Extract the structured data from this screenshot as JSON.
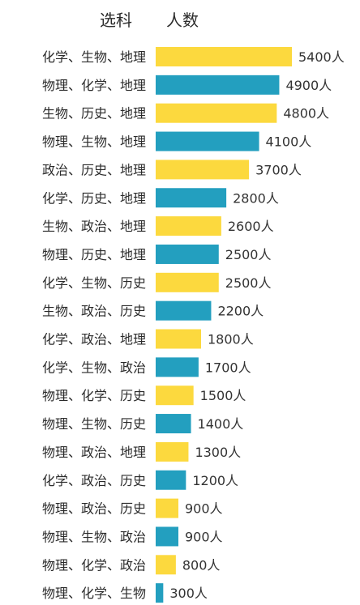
{
  "chart_data": {
    "type": "bar",
    "orientation": "horizontal",
    "header": {
      "category": "选科",
      "value": "人数"
    },
    "unit_suffix": "人",
    "categories": [
      "化学、生物、地理",
      "物理、化学、地理",
      "生物、历史、地理",
      "物理、生物、地理",
      "政治、历史、地理",
      "化学、历史、地理",
      "生物、政治、地理",
      "物理、历史、地理",
      "化学、生物、历史",
      "生物、政治、历史",
      "化学、政治、地理",
      "化学、生物、政治",
      "物理、化学、历史",
      "物理、生物、历史",
      "物理、政治、地理",
      "化学、政治、历史",
      "物理、政治、历史",
      "物理、生物、政治",
      "物理、化学、政治",
      "物理、化学、生物"
    ],
    "values": [
      5400,
      4900,
      4800,
      4100,
      3700,
      2800,
      2600,
      2500,
      2500,
      2200,
      1800,
      1700,
      1500,
      1400,
      1300,
      1200,
      900,
      900,
      800,
      300
    ],
    "bar_colors": [
      "#fcd93e",
      "#239fbf"
    ],
    "xlim": [
      0,
      5400
    ],
    "grid": false,
    "legend": "none"
  }
}
